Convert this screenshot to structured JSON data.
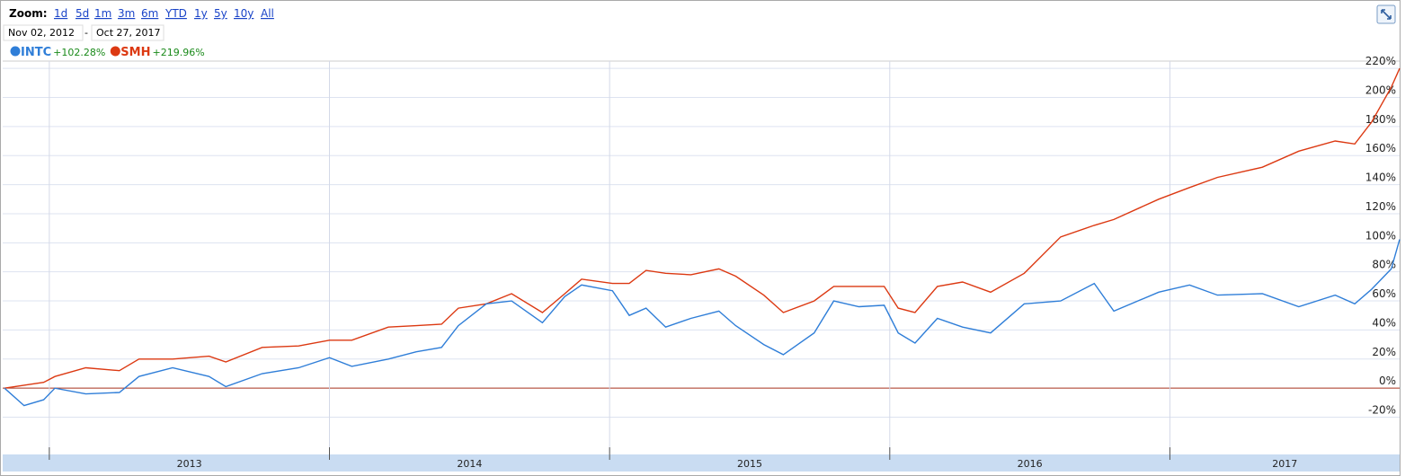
{
  "header": {
    "zoom_label": "Zoom:",
    "zoom_options": [
      "1d",
      "5d",
      "1m",
      "3m",
      "6m",
      "YTD",
      "1y",
      "5y",
      "10y",
      "All"
    ],
    "start_date": "Nov 02, 2012",
    "date_separator": "-",
    "end_date": "Oct 27, 2017"
  },
  "chart_data": {
    "type": "line",
    "x": [
      2012.84,
      2012.91,
      2012.98,
      2013.02,
      2013.13,
      2013.25,
      2013.32,
      2013.44,
      2013.57,
      2013.63,
      2013.76,
      2013.89,
      2014.0,
      2014.08,
      2014.21,
      2014.31,
      2014.4,
      2014.46,
      2014.56,
      2014.65,
      2014.76,
      2014.84,
      2014.9,
      2015.01,
      2015.07,
      2015.13,
      2015.2,
      2015.29,
      2015.39,
      2015.45,
      2015.55,
      2015.62,
      2015.73,
      2015.8,
      2015.89,
      2015.98,
      2016.03,
      2016.09,
      2016.17,
      2016.26,
      2016.36,
      2016.48,
      2016.61,
      2016.73,
      2016.8,
      2016.96,
      2017.07,
      2017.17,
      2017.33,
      2017.46,
      2017.59,
      2017.66,
      2017.72,
      2017.79,
      2017.82
    ],
    "xlim": [
      2012.84,
      2017.82
    ],
    "xticks": [
      2013,
      2014,
      2015,
      2016,
      2017
    ],
    "ylim": [
      -45,
      225
    ],
    "yticks": [
      {
        "value": -20,
        "label": "-20%"
      },
      {
        "value": 0,
        "label": "0%"
      },
      {
        "value": 20,
        "label": "20%"
      },
      {
        "value": 40,
        "label": "40%"
      },
      {
        "value": 60,
        "label": "60%"
      },
      {
        "value": 80,
        "label": "80%"
      },
      {
        "value": 100,
        "label": "100%"
      },
      {
        "value": 120,
        "label": "120%"
      },
      {
        "value": 140,
        "label": "140%"
      },
      {
        "value": 160,
        "label": "160%"
      },
      {
        "value": 180,
        "label": "180%"
      },
      {
        "value": 200,
        "label": "200%"
      },
      {
        "value": 220,
        "label": "220%"
      }
    ],
    "grid": true,
    "series": [
      {
        "name": "INTC",
        "color": "#2f7ed8",
        "change_label": "+102.28%",
        "values": [
          0,
          -12,
          -8,
          0,
          -4,
          -3,
          8,
          14,
          8,
          1,
          10,
          14,
          21,
          15,
          20,
          25,
          28,
          43,
          58,
          60,
          45,
          63,
          71,
          67,
          50,
          55,
          42,
          48,
          53,
          43,
          30,
          23,
          38,
          60,
          56,
          57,
          38,
          31,
          48,
          42,
          38,
          58,
          60,
          72,
          53,
          66,
          71,
          64,
          65,
          56,
          64,
          58,
          68,
          82,
          102.28
        ]
      },
      {
        "name": "SMH",
        "color": "#dc3912",
        "change_label": "+219.96%",
        "values": [
          0,
          2,
          4,
          8,
          14,
          12,
          20,
          20,
          22,
          18,
          28,
          29,
          33,
          33,
          42,
          43,
          44,
          55,
          58,
          65,
          52,
          65,
          75,
          72,
          72,
          81,
          79,
          78,
          82,
          77,
          64,
          52,
          60,
          70,
          70,
          70,
          55,
          52,
          70,
          73,
          66,
          79,
          104,
          112,
          116,
          130,
          138,
          145,
          152,
          163,
          170,
          168,
          183,
          207,
          219.96
        ]
      }
    ]
  }
}
